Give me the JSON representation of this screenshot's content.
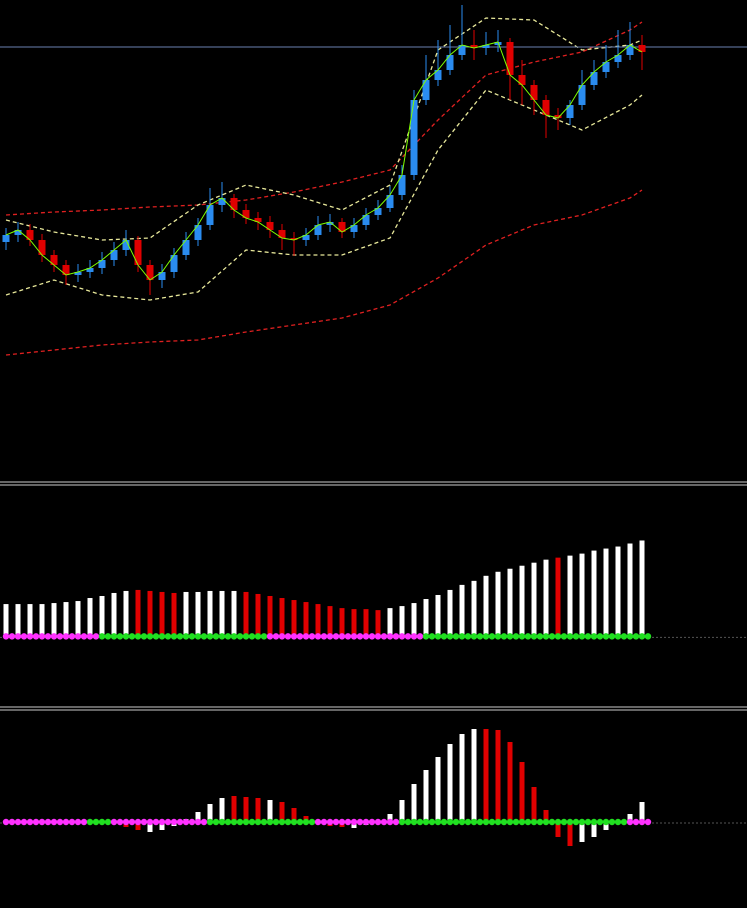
{
  "chart_data": [
    {
      "type": "candlestick",
      "x": [
        0,
        1,
        2,
        3,
        4,
        5,
        6,
        7,
        8,
        9,
        10,
        11,
        12,
        13,
        14,
        15,
        16,
        17,
        18,
        19,
        20,
        21,
        22,
        23,
        24,
        25,
        26,
        27,
        28,
        29,
        30,
        31,
        32,
        33,
        34,
        35,
        36,
        37,
        38,
        39,
        40,
        41,
        42,
        43,
        44,
        45,
        46,
        47,
        48,
        49,
        50,
        51,
        52,
        53
      ],
      "open": [
        258,
        265,
        270,
        260,
        245,
        235,
        225,
        228,
        232,
        240,
        250,
        260,
        235,
        220,
        228,
        245,
        260,
        275,
        295,
        302,
        290,
        282,
        278,
        270,
        262,
        260,
        265,
        275,
        278,
        268,
        275,
        285,
        292,
        305,
        325,
        400,
        420,
        430,
        445,
        455,
        452,
        455,
        458,
        425,
        415,
        400,
        385,
        382,
        395,
        415,
        428,
        438,
        445,
        455
      ],
      "high": [
        272,
        278,
        276,
        266,
        250,
        240,
        236,
        240,
        248,
        258,
        270,
        264,
        240,
        236,
        252,
        268,
        282,
        312,
        318,
        306,
        296,
        288,
        284,
        276,
        268,
        272,
        284,
        286,
        282,
        282,
        292,
        300,
        314,
        335,
        410,
        445,
        460,
        475,
        495,
        470,
        468,
        470,
        462,
        440,
        420,
        405,
        392,
        400,
        430,
        440,
        455,
        470,
        478,
        465
      ],
      "low": [
        250,
        258,
        254,
        238,
        228,
        215,
        218,
        222,
        226,
        234,
        244,
        228,
        205,
        212,
        222,
        240,
        254,
        270,
        288,
        282,
        276,
        270,
        262,
        250,
        244,
        254,
        260,
        268,
        262,
        262,
        270,
        280,
        288,
        300,
        320,
        395,
        414,
        425,
        440,
        440,
        445,
        448,
        400,
        395,
        385,
        362,
        370,
        375,
        390,
        410,
        422,
        432,
        440,
        430
      ],
      "close": [
        265,
        270,
        260,
        245,
        235,
        225,
        228,
        232,
        240,
        250,
        260,
        235,
        220,
        228,
        245,
        260,
        275,
        295,
        302,
        290,
        282,
        278,
        270,
        262,
        260,
        265,
        275,
        278,
        268,
        275,
        285,
        292,
        305,
        325,
        400,
        420,
        430,
        445,
        455,
        452,
        455,
        458,
        425,
        415,
        400,
        385,
        382,
        395,
        415,
        428,
        438,
        445,
        455,
        448
      ],
      "up_color": "#2a8cf0",
      "down_color": "#e00000",
      "close_line_color": "#7fff00",
      "bands": [
        {
          "color": "#e02020",
          "x": [
            0,
            4,
            8,
            12,
            16,
            20,
            24,
            28,
            32,
            36,
            40,
            44,
            48,
            52,
            53
          ],
          "values": [
            285,
            288,
            290,
            293,
            295,
            300,
            308,
            318,
            330,
            380,
            425,
            438,
            448,
            470,
            478
          ]
        },
        {
          "color": "#e02020",
          "x": [
            0,
            4,
            8,
            12,
            16,
            20,
            24,
            28,
            32,
            36,
            40,
            44,
            48,
            52,
            53
          ],
          "values": [
            145,
            150,
            155,
            158,
            160,
            168,
            175,
            182,
            195,
            222,
            255,
            275,
            285,
            302,
            310
          ]
        },
        {
          "color": "#e8e89a",
          "x": [
            0,
            4,
            8,
            12,
            16,
            20,
            24,
            28,
            32,
            36,
            40,
            44,
            48,
            52,
            53
          ],
          "values": [
            280,
            268,
            260,
            262,
            295,
            315,
            305,
            290,
            315,
            450,
            482,
            480,
            450,
            455,
            460
          ]
        },
        {
          "color": "#e8e89a",
          "x": [
            0,
            4,
            8,
            12,
            16,
            20,
            24,
            28,
            32,
            36,
            40,
            44,
            48,
            52,
            53
          ],
          "values": [
            205,
            220,
            205,
            200,
            208,
            250,
            245,
            245,
            262,
            350,
            410,
            390,
            370,
            395,
            405
          ]
        }
      ],
      "hline": 453,
      "hline_color": "#6a7fb0",
      "xlim": [
        -0.5,
        61.75
      ],
      "ylim": [
        20,
        500
      ]
    },
    {
      "type": "bar",
      "x": [
        0,
        1,
        2,
        3,
        4,
        5,
        6,
        7,
        8,
        9,
        10,
        11,
        12,
        13,
        14,
        15,
        16,
        17,
        18,
        19,
        20,
        21,
        22,
        23,
        24,
        25,
        26,
        27,
        28,
        29,
        30,
        31,
        32,
        33,
        34,
        35,
        36,
        37,
        38,
        39,
        40,
        41,
        42,
        43,
        44,
        45,
        46,
        47,
        48,
        49,
        50,
        51,
        52,
        53
      ],
      "values": [
        32,
        32,
        32,
        32,
        33,
        34,
        35,
        38,
        40,
        43,
        45,
        46,
        45,
        44,
        43,
        44,
        44,
        45,
        45,
        45,
        44,
        42,
        40,
        38,
        36,
        34,
        32,
        30,
        28,
        27,
        27,
        26,
        28,
        30,
        33,
        37,
        41,
        46,
        51,
        55,
        60,
        64,
        67,
        70,
        73,
        76,
        78,
        80,
        82,
        85,
        87,
        89,
        92,
        95
      ],
      "colors": [
        "#fff",
        "#fff",
        "#fff",
        "#fff",
        "#fff",
        "#fff",
        "#fff",
        "#fff",
        "#fff",
        "#fff",
        "#fff",
        "#e00000",
        "#e00000",
        "#e00000",
        "#e00000",
        "#fff",
        "#fff",
        "#fff",
        "#fff",
        "#fff",
        "#e00000",
        "#e00000",
        "#e00000",
        "#e00000",
        "#e00000",
        "#e00000",
        "#e00000",
        "#e00000",
        "#e00000",
        "#e00000",
        "#e00000",
        "#e00000",
        "#fff",
        "#fff",
        "#fff",
        "#fff",
        "#fff",
        "#fff",
        "#fff",
        "#fff",
        "#fff",
        "#fff",
        "#fff",
        "#fff",
        "#fff",
        "#fff",
        "#e00000",
        "#fff",
        "#fff",
        "#fff",
        "#fff",
        "#fff",
        "#fff",
        "#fff"
      ],
      "dots": {
        "values": [
          0,
          0,
          0,
          0,
          0,
          0,
          0,
          0,
          0,
          0,
          0,
          0,
          0,
          0,
          0,
          0,
          0,
          0,
          0,
          0,
          0,
          0,
          0,
          0,
          0,
          0,
          0,
          0,
          0,
          0,
          0,
          0,
          0,
          0,
          0,
          0,
          0,
          0,
          0,
          0,
          0,
          0,
          0,
          0,
          0,
          0,
          0,
          0,
          0,
          0,
          0,
          0,
          0,
          0
        ],
        "colors": [
          "#ff30ff",
          "#ff30ff",
          "#ff30ff",
          "#ff30ff",
          "#ff30ff",
          "#ff30ff",
          "#ff30ff",
          "#ff30ff",
          "#20e020",
          "#20e020",
          "#20e020",
          "#20e020",
          "#20e020",
          "#20e020",
          "#20e020",
          "#20e020",
          "#20e020",
          "#20e020",
          "#20e020",
          "#20e020",
          "#20e020",
          "#20e020",
          "#ff30ff",
          "#ff30ff",
          "#ff30ff",
          "#ff30ff",
          "#ff30ff",
          "#ff30ff",
          "#ff30ff",
          "#ff30ff",
          "#ff30ff",
          "#ff30ff",
          "#ff30ff",
          "#ff30ff",
          "#ff30ff",
          "#20e020",
          "#20e020",
          "#20e020",
          "#20e020",
          "#20e020",
          "#20e020",
          "#20e020",
          "#20e020",
          "#20e020",
          "#20e020",
          "#20e020",
          "#20e020",
          "#20e020",
          "#20e020",
          "#20e020",
          "#20e020",
          "#20e020",
          "#20e020",
          "#20e020"
        ]
      },
      "xlim": [
        -0.5,
        61.75
      ],
      "ylim": [
        -68,
        147
      ]
    },
    {
      "type": "bar",
      "x": [
        0,
        1,
        2,
        3,
        4,
        5,
        6,
        7,
        8,
        9,
        10,
        11,
        12,
        13,
        14,
        15,
        16,
        17,
        18,
        19,
        20,
        21,
        22,
        23,
        24,
        25,
        26,
        27,
        28,
        29,
        30,
        31,
        32,
        33,
        34,
        35,
        36,
        37,
        38,
        39,
        40,
        41,
        42,
        43,
        44,
        45,
        46,
        47,
        48,
        49,
        50,
        51,
        52,
        53
      ],
      "values": [
        0,
        0,
        0,
        0,
        0,
        0,
        0,
        0,
        0,
        -2,
        -5,
        -8,
        -10,
        -8,
        -4,
        3,
        10,
        18,
        24,
        26,
        25,
        24,
        22,
        20,
        14,
        6,
        -2,
        -4,
        -5,
        -6,
        -3,
        0,
        8,
        22,
        38,
        52,
        65,
        78,
        88,
        93,
        93,
        92,
        80,
        60,
        35,
        12,
        -15,
        -24,
        -20,
        -15,
        -8,
        -2,
        8,
        20
      ],
      "colors": [
        "#fff",
        "#fff",
        "#fff",
        "#fff",
        "#fff",
        "#fff",
        "#fff",
        "#fff",
        "#fff",
        "#e00000",
        "#e00000",
        "#e00000",
        "#fff",
        "#fff",
        "#fff",
        "#fff",
        "#fff",
        "#fff",
        "#fff",
        "#e00000",
        "#e00000",
        "#e00000",
        "#fff",
        "#e00000",
        "#e00000",
        "#e00000",
        "#e00000",
        "#e00000",
        "#e00000",
        "#fff",
        "#fff",
        "#fff",
        "#fff",
        "#fff",
        "#fff",
        "#fff",
        "#fff",
        "#fff",
        "#fff",
        "#fff",
        "#e00000",
        "#e00000",
        "#e00000",
        "#e00000",
        "#e00000",
        "#e00000",
        "#e00000",
        "#e00000",
        "#fff",
        "#fff",
        "#fff",
        "#fff",
        "#fff",
        "#fff"
      ],
      "dots": {
        "values": [
          0,
          0,
          0,
          0,
          0,
          0,
          0,
          0,
          0,
          0,
          0,
          0,
          0,
          0,
          0,
          0,
          0,
          0,
          0,
          0,
          0,
          0,
          0,
          0,
          0,
          0,
          0,
          0,
          0,
          0,
          0,
          0,
          0,
          0,
          0,
          0,
          0,
          0,
          0,
          0,
          0,
          0,
          0,
          0,
          0,
          0,
          0,
          0,
          0,
          0,
          0,
          0,
          0,
          0
        ],
        "colors": [
          "#ff30ff",
          "#ff30ff",
          "#ff30ff",
          "#ff30ff",
          "#ff30ff",
          "#ff30ff",
          "#ff30ff",
          "#20e020",
          "#20e020",
          "#ff30ff",
          "#ff30ff",
          "#ff30ff",
          "#ff30ff",
          "#ff30ff",
          "#ff30ff",
          "#ff30ff",
          "#ff30ff",
          "#20e020",
          "#20e020",
          "#20e020",
          "#20e020",
          "#20e020",
          "#20e020",
          "#20e020",
          "#20e020",
          "#20e020",
          "#ff30ff",
          "#ff30ff",
          "#ff30ff",
          "#ff30ff",
          "#ff30ff",
          "#ff30ff",
          "#ff30ff",
          "#20e020",
          "#20e020",
          "#20e020",
          "#20e020",
          "#20e020",
          "#20e020",
          "#20e020",
          "#20e020",
          "#20e020",
          "#20e020",
          "#20e020",
          "#20e020",
          "#20e020",
          "#20e020",
          "#20e020",
          "#20e020",
          "#20e020",
          "#20e020",
          "#20e020",
          "#ff30ff",
          "#ff30ff"
        ]
      },
      "xlim": [
        -0.5,
        61.75
      ],
      "ylim": [
        -86,
        110
      ]
    }
  ]
}
